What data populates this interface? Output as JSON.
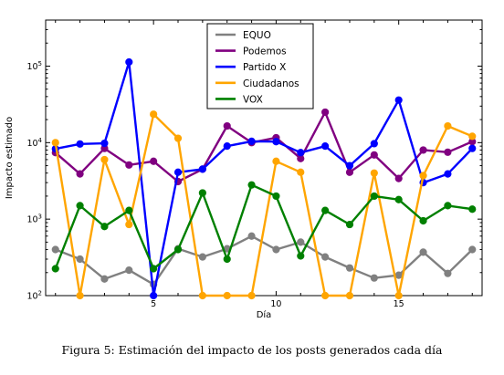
{
  "chart_data": {
    "type": "line",
    "title": "",
    "xlabel": "Día",
    "ylabel": "Impacto estimado",
    "yscale": "log",
    "xlim": [
      0.6,
      18.4
    ],
    "ylim": [
      100,
      400000
    ],
    "grid": false,
    "legend_position": "top-center",
    "x": [
      1,
      2,
      3,
      4,
      5,
      6,
      7,
      8,
      9,
      10,
      11,
      12,
      13,
      14,
      15,
      16,
      17,
      18
    ],
    "xticks": [
      {
        "value": 5,
        "label": "5"
      },
      {
        "value": 10,
        "label": "10"
      },
      {
        "value": 15,
        "label": "15"
      }
    ],
    "yticks": [
      {
        "value": 100,
        "base": "10",
        "exp": "2"
      },
      {
        "value": 1000,
        "base": "10",
        "exp": "3"
      },
      {
        "value": 10000,
        "base": "10",
        "exp": "4"
      },
      {
        "value": 100000,
        "base": "10",
        "exp": "5"
      }
    ],
    "series": [
      {
        "name": "EQUO",
        "color": "#808080",
        "values": [
          400,
          300,
          165,
          215,
          140,
          410,
          320,
          410,
          600,
          400,
          500,
          320,
          230,
          170,
          185,
          370,
          195,
          400
        ]
      },
      {
        "name": "Podemos",
        "color": "#800080",
        "values": [
          7400,
          3900,
          8400,
          5100,
          5700,
          3100,
          4500,
          16500,
          10000,
          11600,
          6200,
          25000,
          4100,
          6900,
          3400,
          8000,
          7500,
          10300
        ]
      },
      {
        "name": "Partido X",
        "color": "#0000ff",
        "values": [
          8300,
          9600,
          9800,
          113000,
          100,
          4100,
          4500,
          9000,
          10400,
          10300,
          7400,
          9000,
          5000,
          9700,
          36000,
          3000,
          3900,
          8400
        ]
      },
      {
        "name": "Ciudadanos",
        "color": "#ffa500",
        "values": [
          10000,
          100,
          6000,
          850,
          23500,
          11400,
          100,
          100,
          100,
          5700,
          4100,
          100,
          100,
          4000,
          100,
          3700,
          16500,
          12100
        ]
      },
      {
        "name": "VOX",
        "color": "#008000",
        "values": [
          225,
          1500,
          800,
          1300,
          225,
          400,
          2200,
          300,
          2800,
          2000,
          330,
          1300,
          850,
          2000,
          1800,
          950,
          1500,
          1350
        ]
      }
    ]
  },
  "caption": "Figura 5: Estimación del impacto de los posts generados cada día"
}
